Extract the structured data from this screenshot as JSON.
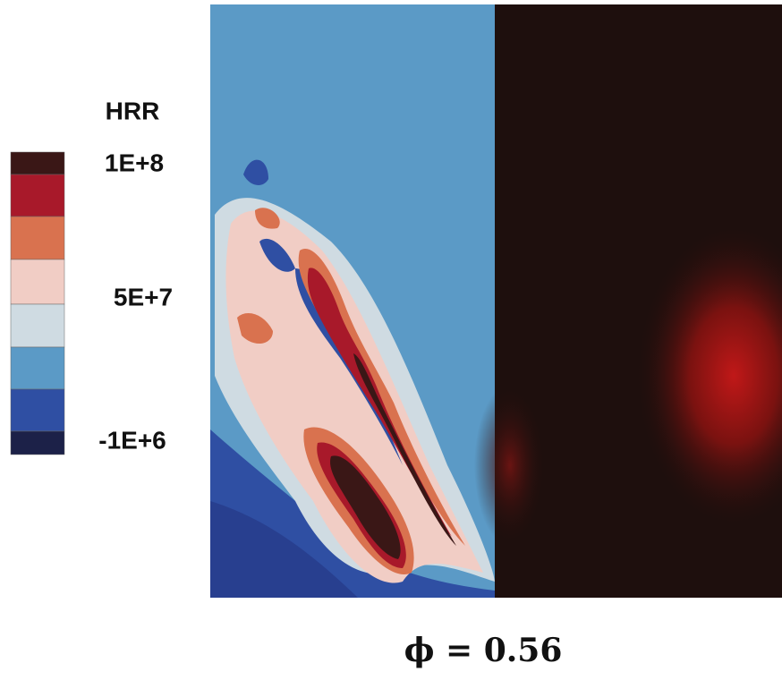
{
  "legend": {
    "title": "HRR",
    "labels": [
      "1E+8",
      "5E+7",
      "-1E+6"
    ]
  },
  "caption": "ϕ = 0.56"
}
